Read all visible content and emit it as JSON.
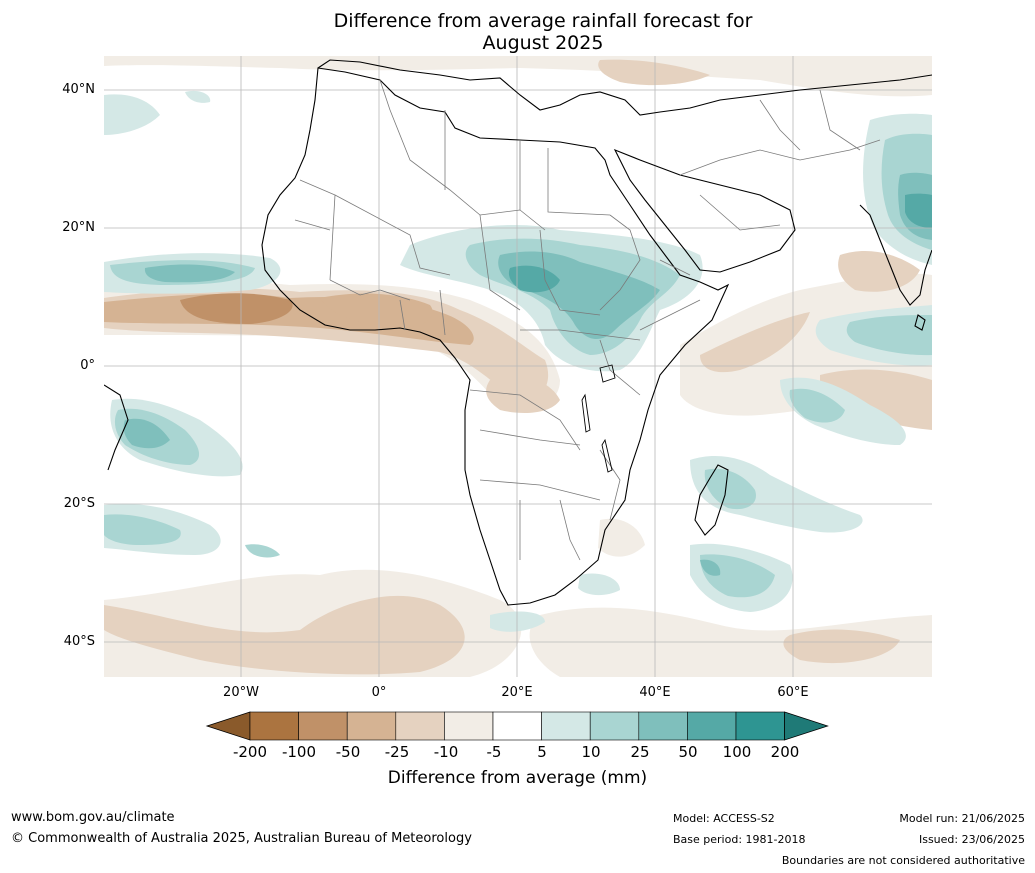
{
  "title_line1": "Difference from average rainfall forecast for",
  "title_line2": "August 2025",
  "lat_labels": [
    "40°N",
    "20°N",
    "0°",
    "20°S",
    "40°S"
  ],
  "lon_labels": [
    "20°W",
    "0°",
    "20°E",
    "40°E",
    "60°E"
  ],
  "colorbar": {
    "title": "Difference from average (mm)",
    "ticks": [
      "-200",
      "-100",
      "-50",
      "-25",
      "-10",
      "-5",
      "5",
      "10",
      "25",
      "50",
      "100",
      "200"
    ],
    "colors": [
      "#8a5a2b",
      "#ab7440",
      "#c09168",
      "#d5b393",
      "#e5d2c0",
      "#f2ede6",
      "#ffffff",
      "#d4e8e6",
      "#a9d5d2",
      "#7fbfbc",
      "#55a9a6",
      "#2e9592",
      "#1f7a77"
    ]
  },
  "footer": {
    "website": "www.bom.gov.au/climate",
    "copyright": "© Commonwealth of Australia 2025, Australian Bureau of Meteorology",
    "model": "Model: ACCESS-S2",
    "base_period": "Base period: 1981-2018",
    "model_run": "Model run: 21/06/2025",
    "issued": "Issued: 23/06/2025",
    "disclaimer": "Boundaries are not considered authoritative"
  }
}
